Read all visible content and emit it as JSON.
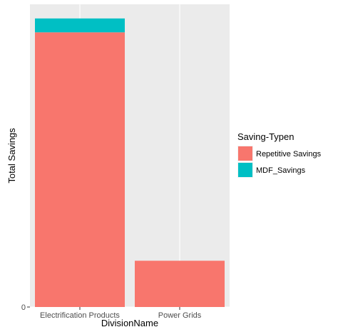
{
  "chart_data": {
    "type": "bar",
    "stacked": true,
    "categories": [
      "Electrification Products",
      "Power Grids"
    ],
    "series": [
      {
        "name": "Repetitive Savings",
        "values": [
          950,
          160
        ],
        "color": "#F8766D"
      },
      {
        "name": "MDF_Savings",
        "values": [
          48,
          0
        ],
        "color": "#00BFC4"
      }
    ],
    "xlabel": "DivisionName",
    "ylabel": "Total Savings",
    "y_ticks": [
      0
    ],
    "y_tick_labels": [
      "0"
    ],
    "ylim": [
      0,
      1047
    ],
    "grid": true,
    "legend": {
      "title": "Saving-Typen",
      "placement": "right",
      "entries": [
        "Repetitive Savings",
        "MDF_Savings"
      ]
    },
    "panel_background": "#EBEBEB",
    "gridline_color": "#FFFFFF"
  }
}
